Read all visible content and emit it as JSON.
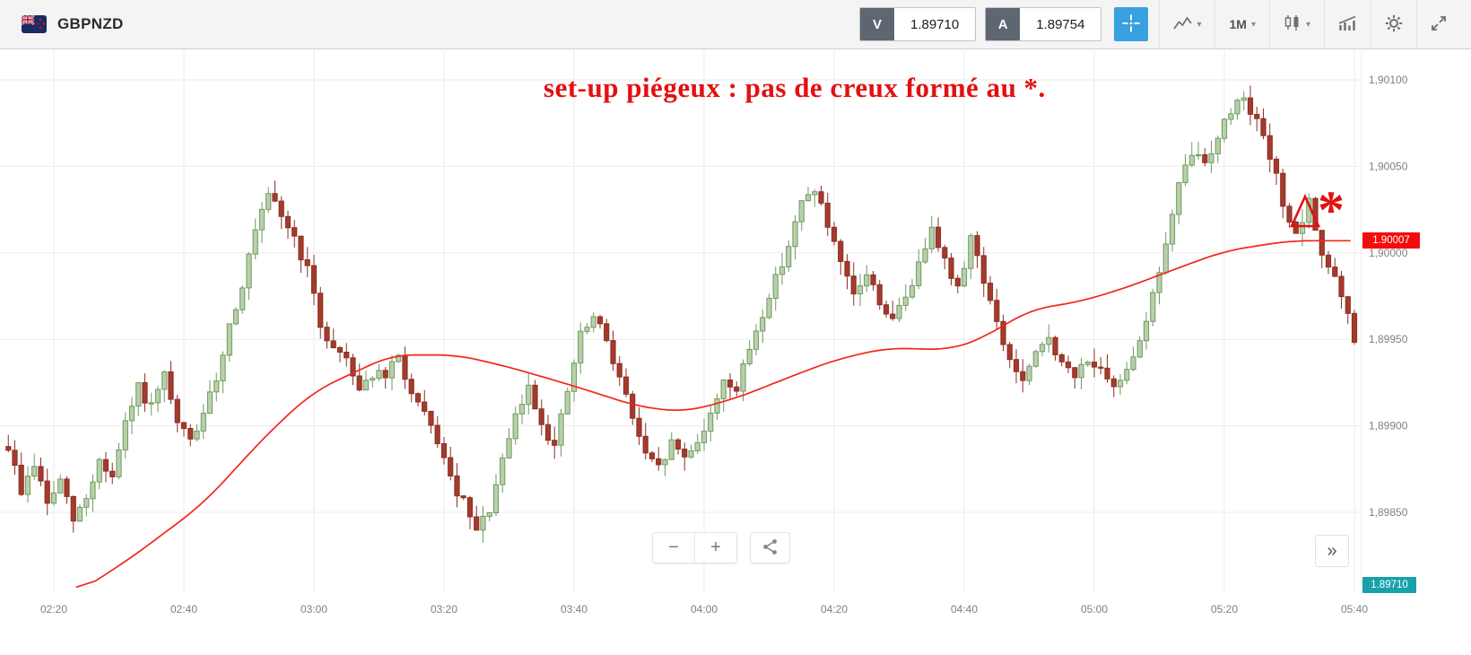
{
  "header": {
    "symbol": "GBPNZD",
    "sell_label": "V",
    "sell_price": "1.89710",
    "buy_label": "A",
    "buy_price": "1.89754",
    "timeframe": "1M"
  },
  "icons": {
    "caret_down": "▾"
  },
  "controls": {
    "zoom_out": "−",
    "zoom_in": "+",
    "panel_expand": "»"
  },
  "chart": {
    "annotation_text": "set-up piégeux : pas de creux formé au *.",
    "asterisk": "*",
    "ma_tag": "1.90007",
    "last_price_tag": "1.89710",
    "annotation_red": "#e31010",
    "tag_red": "#f40b0b",
    "tag_teal": "#18a1ab",
    "ma_red": "#f2261b",
    "candle_up_fill": "#b7d0ab",
    "candle_up_border": "#6f9a5e",
    "candle_down_fill": "#a33b2d",
    "candle_down_border": "#8c2f23"
  },
  "chart_data": {
    "type": "candlestick",
    "symbol": "GBPNZD",
    "interval": "1M",
    "x_labels": [
      "02:20",
      "02:40",
      "03:00",
      "03:20",
      "03:40",
      "04:00",
      "04:20",
      "04:40",
      "05:00",
      "05:20",
      "05:40"
    ],
    "y_ticks": [
      "1,90100",
      "1,90050",
      "1,90000",
      "1,89950",
      "1,89900",
      "1,89850"
    ],
    "y_tick_values": [
      1.901,
      1.9005,
      1.9,
      1.8995,
      1.899,
      1.8985
    ],
    "ylim_visible": [
      1.89803,
      1.90117
    ],
    "t_start": -7,
    "t_end": 200,
    "seed": 9,
    "ma_current_value": 1.90007,
    "last_price": 1.8971,
    "price_path": [
      [
        -7,
        1.89888
      ],
      [
        -5,
        1.89862
      ],
      [
        -3,
        1.89878
      ],
      [
        -1,
        1.89855
      ],
      [
        1,
        1.89868
      ],
      [
        3,
        1.89845
      ],
      [
        5,
        1.89858
      ],
      [
        7,
        1.8988
      ],
      [
        9,
        1.8987
      ],
      [
        11,
        1.899
      ],
      [
        13,
        1.89922
      ],
      [
        15,
        1.8991
      ],
      [
        17,
        1.89928
      ],
      [
        19,
        1.899
      ],
      [
        21,
        1.89892
      ],
      [
        23,
        1.89905
      ],
      [
        25,
        1.89928
      ],
      [
        27,
        1.89958
      ],
      [
        29,
        1.89982
      ],
      [
        31,
        1.90012
      ],
      [
        33,
        1.90032
      ],
      [
        35,
        1.90022
      ],
      [
        37,
        1.90008
      ],
      [
        39,
        1.8999
      ],
      [
        41,
        1.89958
      ],
      [
        43,
        1.89945
      ],
      [
        45,
        1.8994
      ],
      [
        47,
        1.89922
      ],
      [
        49,
        1.8993
      ],
      [
        51,
        1.89928
      ],
      [
        53,
        1.8994
      ],
      [
        55,
        1.89918
      ],
      [
        57,
        1.89905
      ],
      [
        59,
        1.89892
      ],
      [
        61,
        1.89868
      ],
      [
        63,
        1.89855
      ],
      [
        65,
        1.89838
      ],
      [
        67,
        1.89852
      ],
      [
        69,
        1.89878
      ],
      [
        71,
        1.89905
      ],
      [
        73,
        1.89922
      ],
      [
        75,
        1.89902
      ],
      [
        77,
        1.89888
      ],
      [
        79,
        1.8992
      ],
      [
        81,
        1.89952
      ],
      [
        83,
        1.89962
      ],
      [
        85,
        1.8995
      ],
      [
        87,
        1.89928
      ],
      [
        89,
        1.89905
      ],
      [
        91,
        1.89882
      ],
      [
        93,
        1.89875
      ],
      [
        95,
        1.8989
      ],
      [
        97,
        1.89882
      ],
      [
        99,
        1.89892
      ],
      [
        101,
        1.89905
      ],
      [
        103,
        1.89928
      ],
      [
        105,
        1.8992
      ],
      [
        107,
        1.89945
      ],
      [
        109,
        1.89965
      ],
      [
        111,
        1.89985
      ],
      [
        113,
        1.90005
      ],
      [
        115,
        1.90028
      ],
      [
        117,
        1.90038
      ],
      [
        119,
        1.90015
      ],
      [
        121,
        1.89992
      ],
      [
        123,
        1.89975
      ],
      [
        125,
        1.89988
      ],
      [
        127,
        1.89972
      ],
      [
        129,
        1.8996
      ],
      [
        131,
        1.89975
      ],
      [
        133,
        1.89992
      ],
      [
        135,
        1.90018
      ],
      [
        137,
        1.89995
      ],
      [
        139,
        1.89978
      ],
      [
        141,
        1.9001
      ],
      [
        143,
        1.89985
      ],
      [
        145,
        1.89958
      ],
      [
        147,
        1.89938
      ],
      [
        149,
        1.89925
      ],
      [
        151,
        1.8994
      ],
      [
        153,
        1.89952
      ],
      [
        155,
        1.89935
      ],
      [
        157,
        1.89928
      ],
      [
        159,
        1.8994
      ],
      [
        161,
        1.8993
      ],
      [
        163,
        1.8992
      ],
      [
        165,
        1.89935
      ],
      [
        167,
        1.8995
      ],
      [
        169,
        1.89975
      ],
      [
        171,
        1.90005
      ],
      [
        173,
        1.90038
      ],
      [
        175,
        1.90058
      ],
      [
        177,
        1.90052
      ],
      [
        179,
        1.90068
      ],
      [
        181,
        1.90082
      ],
      [
        183,
        1.90092
      ],
      [
        185,
        1.90075
      ],
      [
        187,
        1.90055
      ],
      [
        189,
        1.9003
      ],
      [
        191,
        1.90008
      ],
      [
        193,
        1.90028
      ],
      [
        195,
        1.9
      ],
      [
        197,
        1.89985
      ],
      [
        199,
        1.89962
      ],
      [
        200,
        1.89948
      ]
    ],
    "ma_path": [
      [
        3.4,
        1.89803
      ],
      [
        12,
        1.89824
      ],
      [
        23,
        1.89855
      ],
      [
        33,
        1.89896
      ],
      [
        40,
        1.8992
      ],
      [
        52,
        1.89941
      ],
      [
        62,
        1.89941
      ],
      [
        70,
        1.89934
      ],
      [
        80,
        1.89923
      ],
      [
        90,
        1.89911
      ],
      [
        97,
        1.89908
      ],
      [
        105,
        1.89916
      ],
      [
        113,
        1.89928
      ],
      [
        120,
        1.89938
      ],
      [
        128,
        1.89945
      ],
      [
        138,
        1.89944
      ],
      [
        143,
        1.89951
      ],
      [
        150,
        1.89967
      ],
      [
        158,
        1.89972
      ],
      [
        165,
        1.8998
      ],
      [
        172,
        1.8999
      ],
      [
        180,
        1.90001
      ],
      [
        190,
        1.90007
      ],
      [
        200,
        1.90007
      ]
    ]
  }
}
